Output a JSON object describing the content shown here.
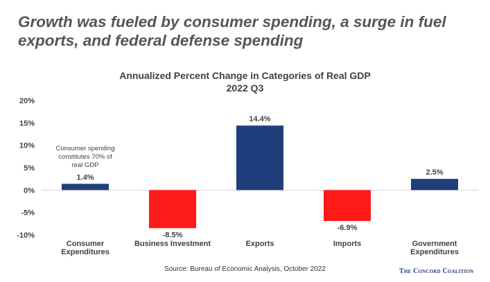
{
  "headline": {
    "line1": "Growth was fueled by consumer spending, a surge in fuel",
    "line2": "exports, and federal defense spending"
  },
  "brand": "The Concord Coalition",
  "source": "Source: Bureau of Economic Analysis, October 2022",
  "colors": {
    "positive": "#1f3f7c",
    "negative": "#ff1a1a",
    "text": "#404040",
    "grid": "#d9d9d9"
  },
  "chart_data": {
    "type": "bar",
    "title": "Annualized Percent Change in Categories of Real GDP",
    "subtitle": "2022 Q3",
    "xlabel": "",
    "ylabel": "",
    "categories": [
      "Consumer Expenditures",
      "Business Investment",
      "Exports",
      "Imports",
      "Government Expenditures"
    ],
    "category_label_lines": [
      [
        "Consumer",
        "Expenditures"
      ],
      [
        "Business Investment"
      ],
      [
        "Exports"
      ],
      [
        "Imports"
      ],
      [
        "Government",
        "Expenditures"
      ]
    ],
    "values": [
      1.4,
      -8.5,
      14.4,
      -6.9,
      2.5
    ],
    "value_labels": [
      "1.4%",
      "-8.5%",
      "14.4%",
      "-6.9%",
      "2.5%"
    ],
    "ylim": [
      -10,
      20
    ],
    "yticks": [
      -10,
      -5,
      0,
      5,
      10,
      15,
      20
    ],
    "ytick_labels": [
      "-10%",
      "-5%",
      "0%",
      "5%",
      "10%",
      "15%",
      "20%"
    ],
    "grid": false,
    "legend": "none",
    "annotation": {
      "category": "Consumer Expenditures",
      "lines": [
        "Consumer spending",
        "constitutes 70% of",
        "real GDP"
      ]
    }
  }
}
